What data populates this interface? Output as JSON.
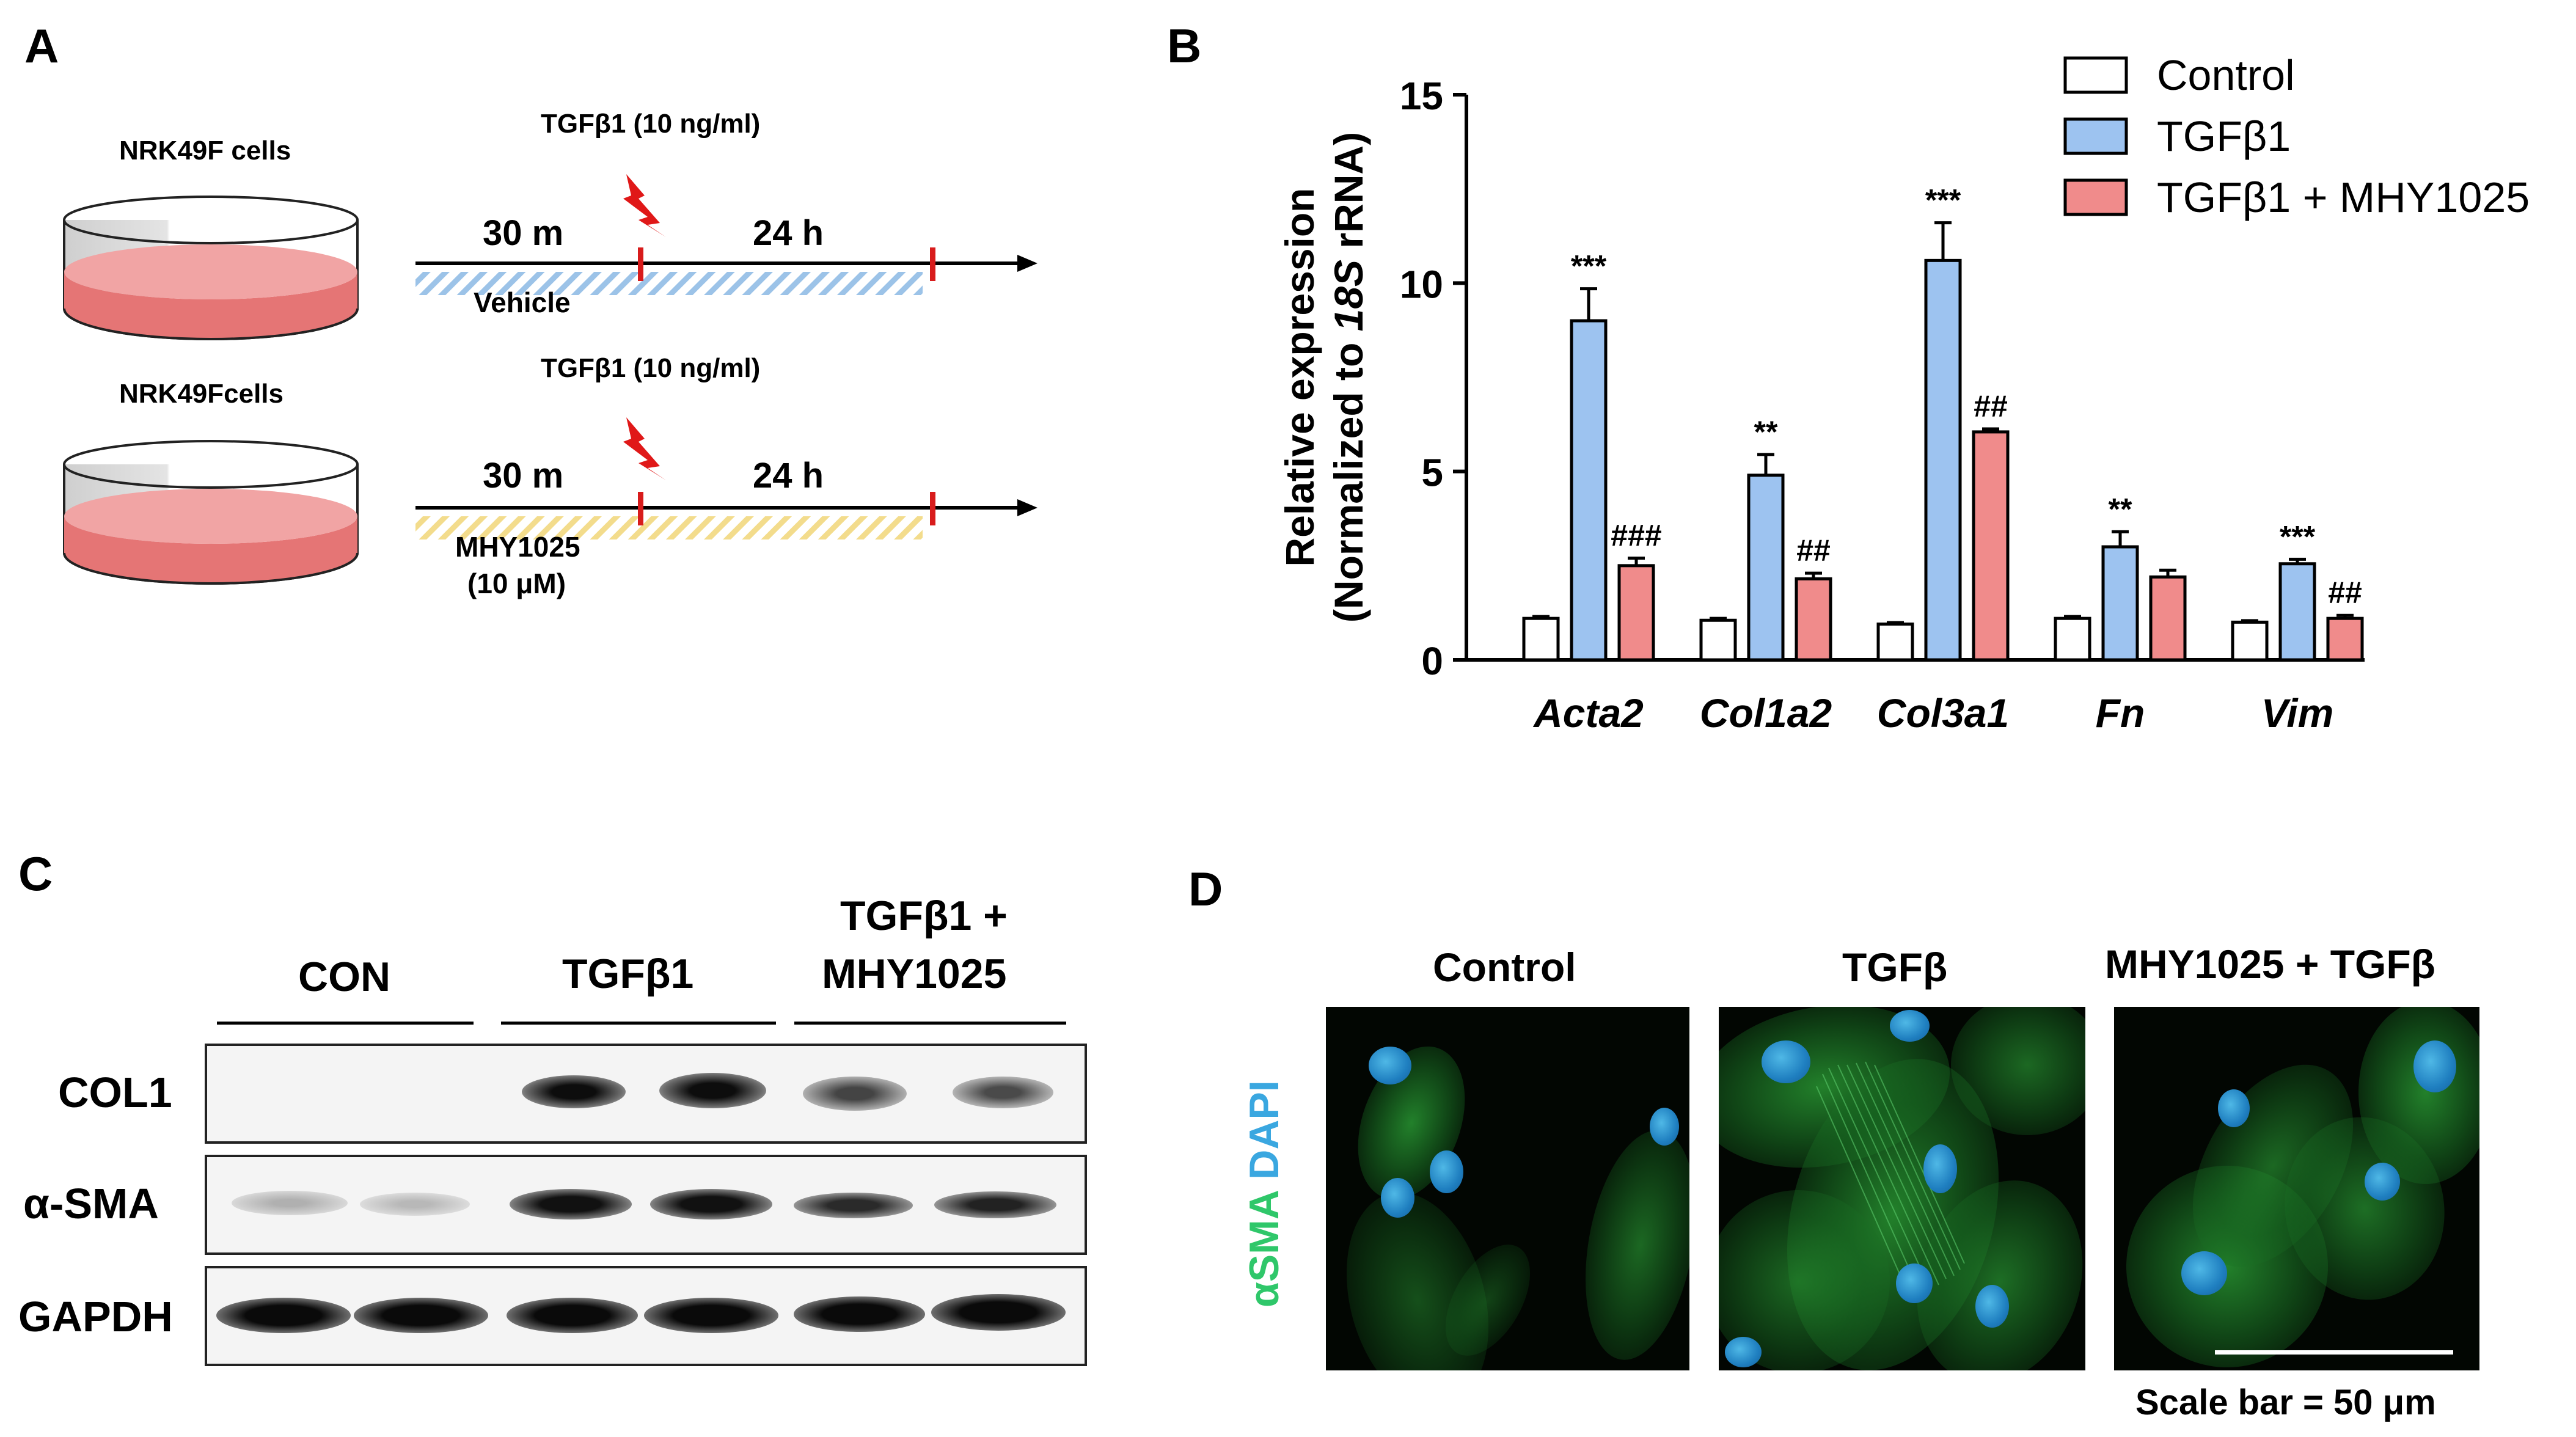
{
  "panels": {
    "a": "A",
    "b": "B",
    "c": "C",
    "d": "D"
  },
  "panel_a": {
    "row1": {
      "cells_label": "NRK49F  cells",
      "treatment_label": "TGFβ1 (10 ng/ml)",
      "pre_time": "30 m",
      "post_time": "24 h",
      "condition": "Vehicle",
      "hatch_color": "#9cc3e8"
    },
    "row2": {
      "cells_label": "NRK49Fcells",
      "treatment_label": "TGFβ1 (10 ng/ml)",
      "pre_time": "30 m",
      "post_time": "24 h",
      "condition": "MHY1025",
      "condition_dose": "(10 μM)",
      "hatch_color": "#f3dc8c"
    },
    "lightning_icon": "lightning-bolt-icon",
    "lightning_color": "#e01818",
    "medium_color": "#e57575"
  },
  "chart_data": {
    "type": "bar",
    "ylabel_line1": "Relative expression",
    "ylabel_line2_prefix": "(Normalized to ",
    "ylabel_line2_italic": "18S",
    "ylabel_line2_suffix": " rRNA)",
    "ylim": [
      0,
      15
    ],
    "yticks": [
      "0",
      "5",
      "10",
      "15"
    ],
    "ytick_values": [
      0,
      5,
      10,
      15
    ],
    "categories": [
      "Acta2",
      "Col1a2",
      "Col3a1",
      "Fn",
      "Vim"
    ],
    "series": [
      {
        "name": "Control",
        "color": "#ffffff",
        "values": [
          1.1,
          1.05,
          0.95,
          1.1,
          1.0
        ],
        "errors": [
          0.05,
          0.05,
          0.04,
          0.05,
          0.04
        ],
        "labels": [
          "",
          "",
          "",
          "",
          ""
        ]
      },
      {
        "name": "TGFβ1",
        "color": "#9dc3f0",
        "values": [
          9.0,
          4.9,
          10.6,
          3.0,
          2.55
        ],
        "errors": [
          0.85,
          0.55,
          1.0,
          0.4,
          0.12
        ],
        "labels": [
          "***",
          "**",
          "***",
          "**",
          "***"
        ]
      },
      {
        "name": "TGFβ1 + MHY1025",
        "color": "#f08b8b",
        "values": [
          2.5,
          2.15,
          6.05,
          2.2,
          1.1
        ],
        "errors": [
          0.2,
          0.15,
          0.08,
          0.18,
          0.08
        ],
        "labels": [
          "###",
          "##",
          "##",
          "",
          "##"
        ]
      }
    ],
    "legend_position": "top-right"
  },
  "panel_c": {
    "groups": [
      "CON",
      "TGFβ1",
      "TGFβ1 +",
      "MHY1025"
    ],
    "rows": [
      "COL1",
      "α-SMA",
      "GAPDH"
    ]
  },
  "panel_d": {
    "columns": [
      "Control",
      "TGFβ",
      "MHY1025 + TGFβ"
    ],
    "stain_green": "αSMA",
    "stain_blue": "DAPI",
    "stain_green_color": "#2fc76a",
    "stain_blue_color": "#3aa7e0",
    "scale_bar_label": "Scale bar = 50 μm"
  }
}
